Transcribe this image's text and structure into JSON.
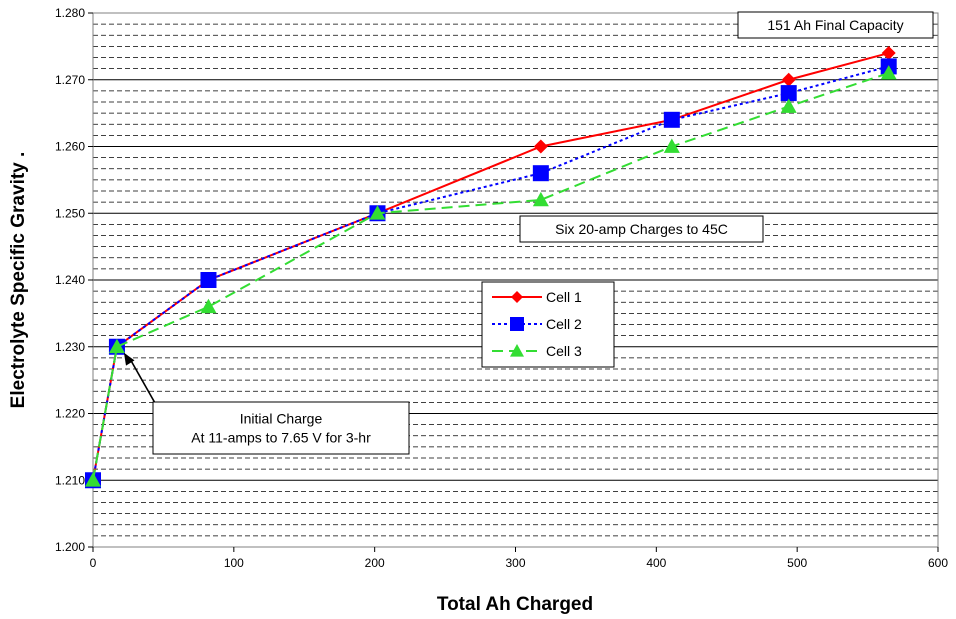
{
  "chart_data": {
    "type": "line",
    "title": "",
    "xlabel": "Total Ah Charged",
    "ylabel": "Electrolyte Specific Gravity .",
    "xlim": [
      0,
      600
    ],
    "ylim": [
      1.2,
      1.28
    ],
    "x_ticks": [
      "0",
      "100",
      "200",
      "300",
      "400",
      "500",
      "600"
    ],
    "y_ticks": [
      "1.200",
      "1.210",
      "1.220",
      "1.230",
      "1.240",
      "1.250",
      "1.260",
      "1.270",
      "1.280"
    ],
    "grid": "major solid and minor dashed horizontal lines",
    "legend_position": "center",
    "series": [
      {
        "name": "Cell 1",
        "color": "#ff0000",
        "line_style": "solid",
        "marker": "diamond",
        "points": [
          [
            0,
            1.21
          ],
          [
            17,
            1.23
          ],
          [
            82,
            1.24
          ],
          [
            202,
            1.25
          ],
          [
            318,
            1.26
          ],
          [
            411,
            1.264
          ],
          [
            494,
            1.27
          ],
          [
            565,
            1.274
          ]
        ]
      },
      {
        "name": "Cell 2",
        "color": "#0000ff",
        "line_style": "dotted",
        "marker": "square",
        "points": [
          [
            0,
            1.21
          ],
          [
            17,
            1.23
          ],
          [
            82,
            1.24
          ],
          [
            202,
            1.25
          ],
          [
            318,
            1.256
          ],
          [
            411,
            1.264
          ],
          [
            494,
            1.268
          ],
          [
            565,
            1.272
          ]
        ]
      },
      {
        "name": "Cell 3",
        "color": "#33dd33",
        "line_style": "dashed",
        "marker": "triangle",
        "points": [
          [
            0,
            1.21
          ],
          [
            17,
            1.23
          ],
          [
            82,
            1.236
          ],
          [
            202,
            1.25
          ],
          [
            318,
            1.252
          ],
          [
            411,
            1.26
          ],
          [
            494,
            1.266
          ],
          [
            565,
            1.271
          ]
        ]
      }
    ],
    "annotations": [
      {
        "id": "final-capacity",
        "lines": [
          "151 Ah Final Capacity"
        ]
      },
      {
        "id": "six-charges",
        "lines": [
          "Six 20-amp Charges to 45C"
        ]
      },
      {
        "id": "initial-charge",
        "lines": [
          "Initial Charge",
          "At 11-amps to 7.65 V for 3-hr"
        ],
        "arrow_to": [
          17,
          1.23
        ]
      }
    ]
  }
}
